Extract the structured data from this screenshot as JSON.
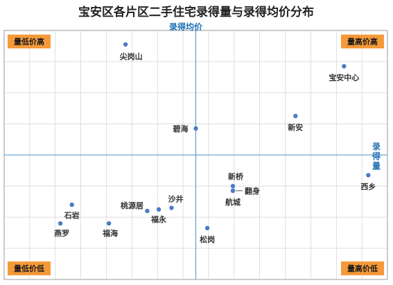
{
  "chart_data": {
    "type": "scatter",
    "title": "宝安区各片区二手住宅录得量与录得均价分布",
    "xlabel": "录得量",
    "ylabel": "录得均价",
    "grid": true,
    "quadrants": {
      "top_left": "量低价高",
      "top_right": "量高价高",
      "bottom_left": "量低价低",
      "bottom_right": "量高价低"
    },
    "colors": {
      "point": "#4a7cc4",
      "axis": "#4a8fc9",
      "badge": "#f59a3a",
      "grid": "#d0d0d0"
    },
    "points": [
      {
        "name": "尖岗山",
        "x": -5.5,
        "y": 7.1
      },
      {
        "name": "宝安中心",
        "x": 11.6,
        "y": 5.7
      },
      {
        "name": "碧海",
        "x": 0.0,
        "y": 1.7
      },
      {
        "name": "新安",
        "x": 7.8,
        "y": 2.5
      },
      {
        "name": "西乡",
        "x": 13.5,
        "y": -1.3
      },
      {
        "name": "新桥",
        "x": 2.9,
        "y": -2.0
      },
      {
        "name": "翻身",
        "x": 2.9,
        "y": -2.3
      },
      {
        "name": "航城",
        "x": 2.9,
        "y": -2.3
      },
      {
        "name": "沙井",
        "x": -1.9,
        "y": -3.4
      },
      {
        "name": "桃源居",
        "x": -3.8,
        "y": -3.6
      },
      {
        "name": "福永",
        "x": -2.9,
        "y": -3.5
      },
      {
        "name": "石岩",
        "x": -9.7,
        "y": -3.2
      },
      {
        "name": "燕罗",
        "x": -10.6,
        "y": -4.4
      },
      {
        "name": "福海",
        "x": -6.8,
        "y": -4.4
      },
      {
        "name": "松岗",
        "x": 0.9,
        "y": -4.7
      }
    ],
    "xlim": [
      -15,
      15
    ],
    "ylim": [
      -8,
      8
    ]
  }
}
